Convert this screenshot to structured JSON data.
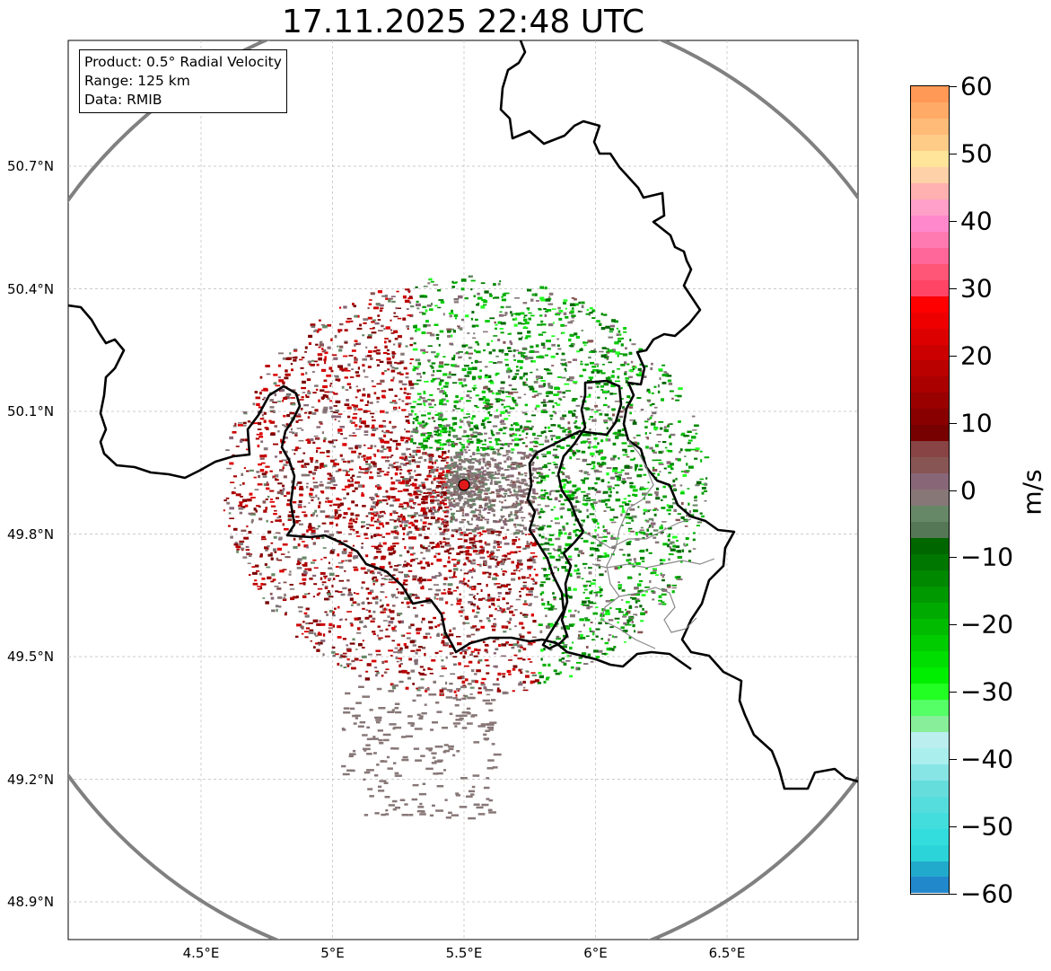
{
  "title": "17.11.2025 22:48 UTC",
  "info": {
    "product": "Product: 0.5° Radial Velocity",
    "range": "Range: 125 km",
    "data": "Data: RMIB"
  },
  "lat_labels": [
    {
      "text": "50.7°N",
      "lat": 50.7
    },
    {
      "text": "50.4°N",
      "lat": 50.4
    },
    {
      "text": "50.1°N",
      "lat": 50.1
    },
    {
      "text": "49.8°N",
      "lat": 49.8
    },
    {
      "text": "49.5°N",
      "lat": 49.5
    },
    {
      "text": "49.2°N",
      "lat": 49.2
    },
    {
      "text": "48.9°N",
      "lat": 48.9
    }
  ],
  "lon_labels": [
    {
      "text": "4.5°E",
      "lon": 4.5
    },
    {
      "text": "5°E",
      "lon": 5.0
    },
    {
      "text": "5.5°E",
      "lon": 5.5
    },
    {
      "text": "6°E",
      "lon": 6.0
    },
    {
      "text": "6.5°E",
      "lon": 6.5
    }
  ],
  "radar_site": {
    "lon": 5.5,
    "lat": 49.92,
    "color": "#e0191b"
  },
  "colorbar": {
    "units": "m/s",
    "min": -60,
    "max": 60,
    "ticks": [
      "60",
      "50",
      "40",
      "30",
      "20",
      "10",
      "0",
      "−10",
      "−20",
      "−30",
      "−40",
      "−50",
      "−60"
    ],
    "colors": [
      "#ff9955",
      "#ffaa66",
      "#ffbb77",
      "#ffcc88",
      "#ffe599",
      "#ffd1a8",
      "#ffb0b0",
      "#ffa0c8",
      "#ff88cc",
      "#ff7ab0",
      "#ff6699",
      "#ff5577",
      "#ff4466",
      "#ff0000",
      "#ee0000",
      "#dd0000",
      "#cc0000",
      "#bb0000",
      "#aa0000",
      "#990000",
      "#880000",
      "#770000",
      "#884444",
      "#885555",
      "#886677",
      "#887777",
      "#668866",
      "#557755",
      "#006600",
      "#007700",
      "#008800",
      "#009900",
      "#00aa00",
      "#00bb00",
      "#00cc00",
      "#00dd00",
      "#00ee00",
      "#22ff22",
      "#55ff66",
      "#88ee99",
      "#bbeeee",
      "#aaeeee",
      "#88e5e5",
      "#66dddd",
      "#55dddd",
      "#44dddd",
      "#33dddd",
      "#2bd4d8",
      "#22aacc",
      "#2288cc"
    ]
  }
}
